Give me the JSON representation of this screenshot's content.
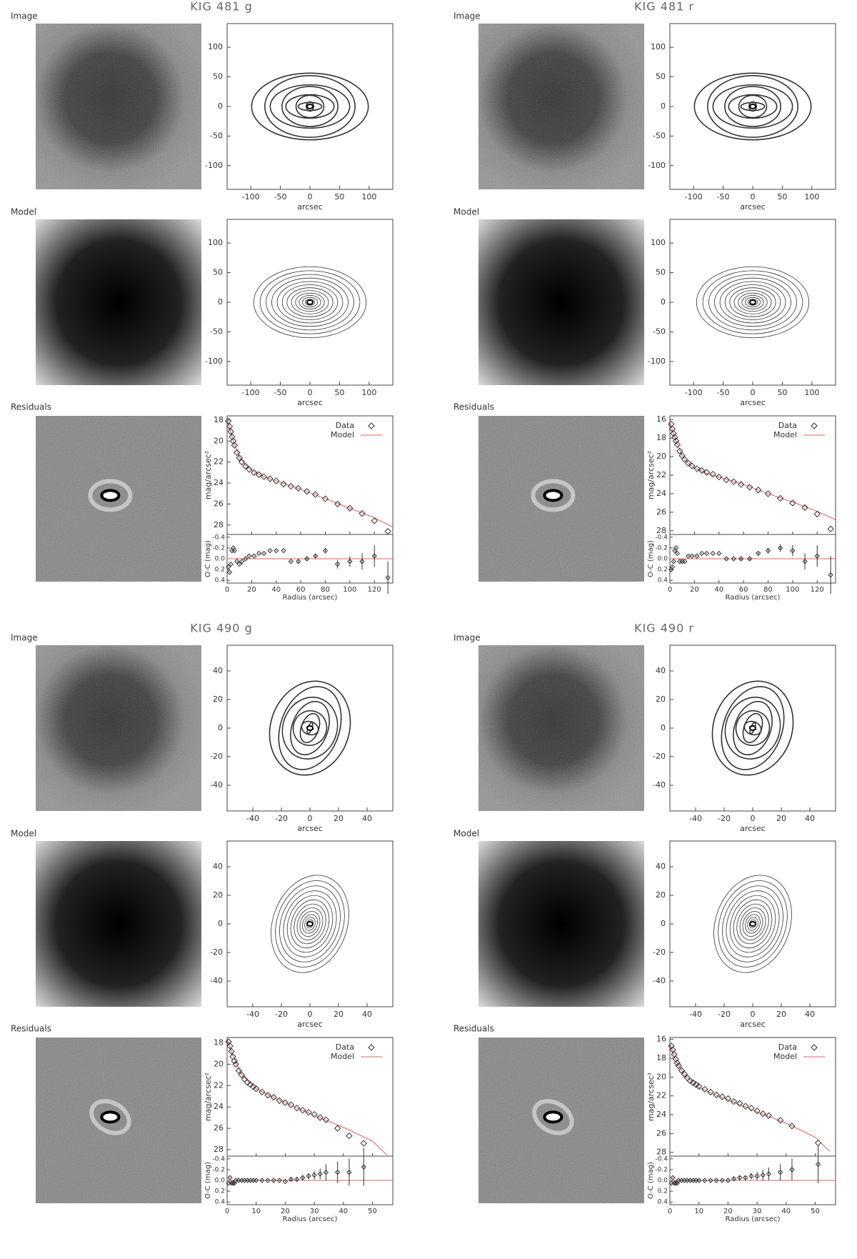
{
  "panels": [
    {
      "title": "KIG 481 g",
      "image_label": "Image",
      "model_label": "Model",
      "residuals_label": "Residuals",
      "contours": {
        "type": "contour",
        "xlabel": "arcsec",
        "xlim": [
          -140,
          140
        ],
        "ylim": [
          -140,
          140
        ],
        "xticks": [
          -100,
          -50,
          0,
          50,
          100
        ],
        "yticks": [
          -100,
          -50,
          0,
          50,
          100
        ]
      },
      "model": {
        "type": "contour",
        "xlabel": "arcsec",
        "xlim": [
          -140,
          140
        ],
        "ylim": [
          -140,
          140
        ],
        "xticks": [
          -100,
          -50,
          0,
          50,
          100
        ],
        "yticks": [
          -100,
          -50,
          0,
          50,
          100
        ]
      },
      "profile": {
        "type": "scatter",
        "ylabel": "mag/arcsec²",
        "xlim": [
          0,
          135
        ],
        "ylim": [
          17.6,
          28.9
        ],
        "yticks": [
          18,
          20,
          22,
          24,
          26,
          28
        ],
        "series": [
          {
            "name": "Data",
            "color": "#333333",
            "x": [
              1,
              2,
              3,
              4,
              5,
              6,
              8,
              10,
              12,
              15,
              18,
              22,
              26,
              30,
              35,
              40,
              46,
              52,
              58,
              65,
              72,
              80,
              90,
              100,
              110,
              120,
              131
            ],
            "values": [
              18.1,
              18.6,
              19.1,
              19.6,
              20.0,
              20.4,
              21.1,
              21.6,
              22.0,
              22.4,
              22.7,
              23.0,
              23.2,
              23.4,
              23.6,
              23.8,
              24.1,
              24.3,
              24.5,
              24.8,
              25.1,
              25.5,
              26.0,
              26.4,
              26.9,
              27.6,
              28.6
            ]
          },
          {
            "name": "Model",
            "color": "#e06060",
            "x": [
              0,
              5,
              10,
              15,
              20,
              30,
              40,
              60,
              80,
              100,
              120,
              135
            ],
            "values": [
              17.9,
              20.0,
              21.5,
              22.3,
              22.8,
              23.4,
              23.8,
              24.6,
              25.5,
              26.4,
              27.3,
              28.2
            ]
          }
        ]
      },
      "residuals": {
        "ylabel": "O-C (mag)",
        "xlabel": "Radius (arcsec)",
        "xlim": [
          0,
          135
        ],
        "ylim": [
          -0.45,
          0.45
        ],
        "xticks": [
          0,
          20,
          40,
          60,
          80,
          100,
          120
        ],
        "yticks": [
          -0.4,
          -0.2,
          {
            "value": 0,
            "label": "0.0"
          },
          0.2,
          0.4
        ],
        "values": [
          0.15,
          0.25,
          0.1,
          -0.15,
          -0.2,
          -0.15,
          0.05,
          0.1,
          0.05,
          0,
          -0.05,
          -0.05,
          -0.1,
          -0.1,
          -0.15,
          -0.15,
          -0.15,
          0.05,
          0.05,
          0,
          -0.05,
          -0.15,
          0.1,
          0.05,
          0.05,
          -0.05,
          0.35
        ],
        "errors": [
          0.01,
          0.01,
          0.01,
          0.01,
          0.01,
          0.01,
          0.01,
          0.01,
          0.01,
          0.01,
          0.01,
          0.01,
          0.01,
          0.01,
          0.01,
          0.01,
          0.01,
          0.01,
          0.02,
          0.02,
          0.03,
          0.05,
          0.08,
          0.1,
          0.15,
          0.2,
          0.3
        ]
      }
    },
    {
      "title": "KIG 481 r",
      "image_label": "Image",
      "model_label": "Model",
      "residuals_label": "Residuals",
      "contours": {
        "type": "contour",
        "xlabel": "arcsec",
        "xlim": [
          -140,
          140
        ],
        "ylim": [
          -140,
          140
        ],
        "xticks": [
          -100,
          -50,
          0,
          50,
          100
        ],
        "yticks": [
          -100,
          -50,
          0,
          50,
          100
        ]
      },
      "model": {
        "type": "contour",
        "xlabel": "arcsec",
        "xlim": [
          -140,
          140
        ],
        "ylim": [
          -140,
          140
        ],
        "xticks": [
          -100,
          -50,
          0,
          50,
          100
        ],
        "yticks": [
          -100,
          -50,
          0,
          50,
          100
        ]
      },
      "profile": {
        "type": "scatter",
        "ylabel": "mag/arcsec²",
        "xlim": [
          0,
          135
        ],
        "ylim": [
          15.6,
          28.4
        ],
        "yticks": [
          16,
          18,
          20,
          22,
          24,
          26,
          28
        ],
        "series": [
          {
            "name": "Data",
            "color": "#333333",
            "x": [
              1,
              2,
              3,
              4,
              5,
              6,
              8,
              10,
              12,
              15,
              18,
              22,
              26,
              30,
              35,
              40,
              46,
              52,
              58,
              65,
              72,
              80,
              90,
              100,
              110,
              120,
              131
            ],
            "values": [
              16.5,
              17.0,
              17.5,
              17.9,
              18.3,
              18.7,
              19.4,
              19.9,
              20.3,
              20.7,
              21.0,
              21.3,
              21.5,
              21.7,
              21.9,
              22.2,
              22.5,
              22.7,
              23.0,
              23.3,
              23.6,
              24.0,
              24.5,
              25.0,
              25.5,
              26.2,
              27.8
            ]
          },
          {
            "name": "Model",
            "color": "#e06060",
            "x": [
              0,
              5,
              10,
              15,
              20,
              30,
              40,
              60,
              80,
              100,
              120,
              135
            ],
            "values": [
              16.3,
              18.3,
              19.9,
              20.7,
              21.2,
              21.8,
              22.2,
              23.0,
              24.0,
              24.9,
              25.9,
              26.8
            ]
          }
        ]
      },
      "residuals": {
        "ylabel": "O-C (mag)",
        "xlabel": "Radius (arcsec)",
        "xlim": [
          0,
          135
        ],
        "ylim": [
          -0.45,
          0.45
        ],
        "xticks": [
          0,
          20,
          40,
          60,
          80,
          100,
          120
        ],
        "yticks": [
          -0.4,
          -0.2,
          {
            "value": 0,
            "label": "0.0"
          },
          0.2,
          0.4
        ],
        "values": [
          0.2,
          0.15,
          0.05,
          -0.15,
          -0.2,
          -0.1,
          0.05,
          0.05,
          0.05,
          -0.05,
          -0.05,
          -0.05,
          -0.1,
          -0.1,
          -0.1,
          -0.1,
          0,
          0,
          0,
          0,
          -0.1,
          -0.15,
          -0.2,
          -0.15,
          0.05,
          -0.05,
          0.3
        ],
        "errors": [
          0.01,
          0.01,
          0.01,
          0.01,
          0.01,
          0.01,
          0.01,
          0.01,
          0.01,
          0.01,
          0.01,
          0.01,
          0.01,
          0.01,
          0.01,
          0.01,
          0.01,
          0.01,
          0.02,
          0.02,
          0.03,
          0.05,
          0.07,
          0.1,
          0.15,
          0.2,
          0.35
        ]
      }
    },
    {
      "title": "KIG 490 g",
      "image_label": "Image",
      "model_label": "Model",
      "residuals_label": "Residuals",
      "contours": {
        "type": "contour",
        "xlabel": "arcsec",
        "xlim": [
          -58,
          58
        ],
        "ylim": [
          -58,
          58
        ],
        "xticks": [
          -40,
          -20,
          0,
          20,
          40
        ],
        "yticks": [
          -40,
          -20,
          0,
          20,
          40
        ]
      },
      "model": {
        "type": "contour",
        "xlabel": "arcsec",
        "xlim": [
          -58,
          58
        ],
        "ylim": [
          -58,
          58
        ],
        "xticks": [
          -40,
          -20,
          0,
          20,
          40
        ],
        "yticks": [
          -40,
          -20,
          0,
          20,
          40
        ]
      },
      "profile": {
        "type": "scatter",
        "ylabel": "mag/arcsec²",
        "xlim": [
          0,
          57
        ],
        "ylim": [
          17.5,
          28.6
        ],
        "yticks": [
          18,
          20,
          22,
          24,
          26,
          28
        ],
        "series": [
          {
            "name": "Data",
            "color": "#333333",
            "x": [
              0.5,
              1,
              1.5,
              2,
              2.5,
              3,
              4,
              5,
              6,
              7,
              8,
              9,
              10,
              12,
              14,
              16,
              18,
              20,
              22,
              24,
              26,
              28,
              30,
              32,
              34,
              38,
              42,
              47
            ],
            "values": [
              17.9,
              18.3,
              18.8,
              19.3,
              19.7,
              20.0,
              20.6,
              21.0,
              21.4,
              21.7,
              21.9,
              22.1,
              22.3,
              22.6,
              22.9,
              23.1,
              23.4,
              23.6,
              23.8,
              24.1,
              24.3,
              24.5,
              24.7,
              25.0,
              25.2,
              26.0,
              26.7,
              27.4
            ]
          },
          {
            "name": "Model",
            "color": "#e06060",
            "x": [
              0,
              2,
              5,
              10,
              15,
              20,
              30,
              40,
              50,
              55
            ],
            "values": [
              17.6,
              19.2,
              21.0,
              22.3,
              23.0,
              23.6,
              24.8,
              25.9,
              27.2,
              28.5
            ]
          }
        ]
      },
      "residuals": {
        "ylabel": "O-C (mag)",
        "xlabel": "Radius (arcsec)",
        "xlim": [
          0,
          57
        ],
        "ylim": [
          -0.45,
          0.45
        ],
        "xticks": [
          0,
          10,
          20,
          30,
          40,
          50
        ],
        "yticks": [
          -0.4,
          -0.2,
          {
            "value": 0,
            "label": "0.0"
          },
          0.2,
          0.4
        ],
        "values": [
          0.05,
          -0.05,
          0.05,
          0.05,
          0.05,
          0,
          0,
          0,
          0,
          0,
          0,
          0,
          0,
          0,
          0,
          0,
          0,
          0.02,
          -0.02,
          -0.02,
          -0.05,
          -0.08,
          -0.1,
          -0.12,
          -0.15,
          -0.15,
          -0.15,
          -0.25
        ],
        "errors": [
          0.01,
          0.01,
          0.01,
          0.01,
          0.01,
          0.01,
          0.01,
          0.01,
          0.01,
          0.01,
          0.01,
          0.01,
          0.01,
          0.01,
          0.01,
          0.01,
          0.01,
          0.01,
          0.03,
          0.04,
          0.05,
          0.06,
          0.08,
          0.1,
          0.15,
          0.2,
          0.25,
          0.35
        ]
      }
    },
    {
      "title": "KIG 490 r",
      "image_label": "Image",
      "model_label": "Model",
      "residuals_label": "Residuals",
      "contours": {
        "type": "contour",
        "xlabel": "arcsec",
        "xlim": [
          -58,
          58
        ],
        "ylim": [
          -58,
          58
        ],
        "xticks": [
          -40,
          -20,
          0,
          20,
          40
        ],
        "yticks": [
          -40,
          -20,
          0,
          20,
          40
        ]
      },
      "model": {
        "type": "contour",
        "xlabel": "arcsec",
        "xlim": [
          -58,
          58
        ],
        "ylim": [
          -58,
          58
        ],
        "xticks": [
          -40,
          -20,
          0,
          20,
          40
        ],
        "yticks": [
          -40,
          -20,
          0,
          20,
          40
        ]
      },
      "profile": {
        "type": "scatter",
        "ylabel": "mag/arcsec²",
        "xlim": [
          0,
          57
        ],
        "ylim": [
          15.8,
          28.4
        ],
        "yticks": [
          16,
          18,
          20,
          22,
          24,
          26,
          28
        ],
        "series": [
          {
            "name": "Data",
            "color": "#333333",
            "x": [
              0.5,
              1,
              1.5,
              2,
              2.5,
              3,
              4,
              5,
              6,
              7,
              8,
              9,
              10,
              12,
              14,
              16,
              18,
              20,
              22,
              24,
              26,
              28,
              30,
              32,
              34,
              38,
              42,
              51
            ],
            "values": [
              16.7,
              17.1,
              17.6,
              18.1,
              18.5,
              18.8,
              19.3,
              19.7,
              20.1,
              20.4,
              20.6,
              20.8,
              21.0,
              21.3,
              21.6,
              21.9,
              22.1,
              22.3,
              22.6,
              22.8,
              23.1,
              23.3,
              23.6,
              23.9,
              24.1,
              24.6,
              25.2,
              27.0
            ]
          },
          {
            "name": "Model",
            "color": "#e06060",
            "x": [
              0,
              2,
              5,
              10,
              15,
              20,
              30,
              40,
              50,
              55
            ],
            "values": [
              16.4,
              18.2,
              19.8,
              21.1,
              21.8,
              22.4,
              23.7,
              24.9,
              26.4,
              27.9
            ]
          }
        ]
      },
      "residuals": {
        "ylabel": "O-C (mag)",
        "xlabel": "Radius (arcsec)",
        "xlim": [
          0,
          57
        ],
        "ylim": [
          -0.45,
          0.45
        ],
        "xticks": [
          0,
          10,
          20,
          30,
          40,
          50
        ],
        "yticks": [
          -0.4,
          -0.2,
          {
            "value": 0,
            "label": "0.0"
          },
          0.2,
          0.4
        ],
        "values": [
          0.05,
          -0.05,
          0.05,
          0.05,
          0.05,
          0,
          0,
          0,
          0,
          0,
          0,
          0,
          0,
          0,
          0,
          0,
          0,
          0,
          -0.03,
          -0.05,
          -0.05,
          -0.08,
          -0.08,
          -0.1,
          -0.12,
          -0.15,
          -0.2,
          -0.3
        ],
        "errors": [
          0.01,
          0.01,
          0.01,
          0.01,
          0.01,
          0.01,
          0.01,
          0.01,
          0.01,
          0.01,
          0.01,
          0.01,
          0.01,
          0.01,
          0.01,
          0.01,
          0.01,
          0.01,
          0.03,
          0.04,
          0.05,
          0.06,
          0.08,
          0.1,
          0.12,
          0.15,
          0.2,
          0.35
        ]
      }
    }
  ]
}
